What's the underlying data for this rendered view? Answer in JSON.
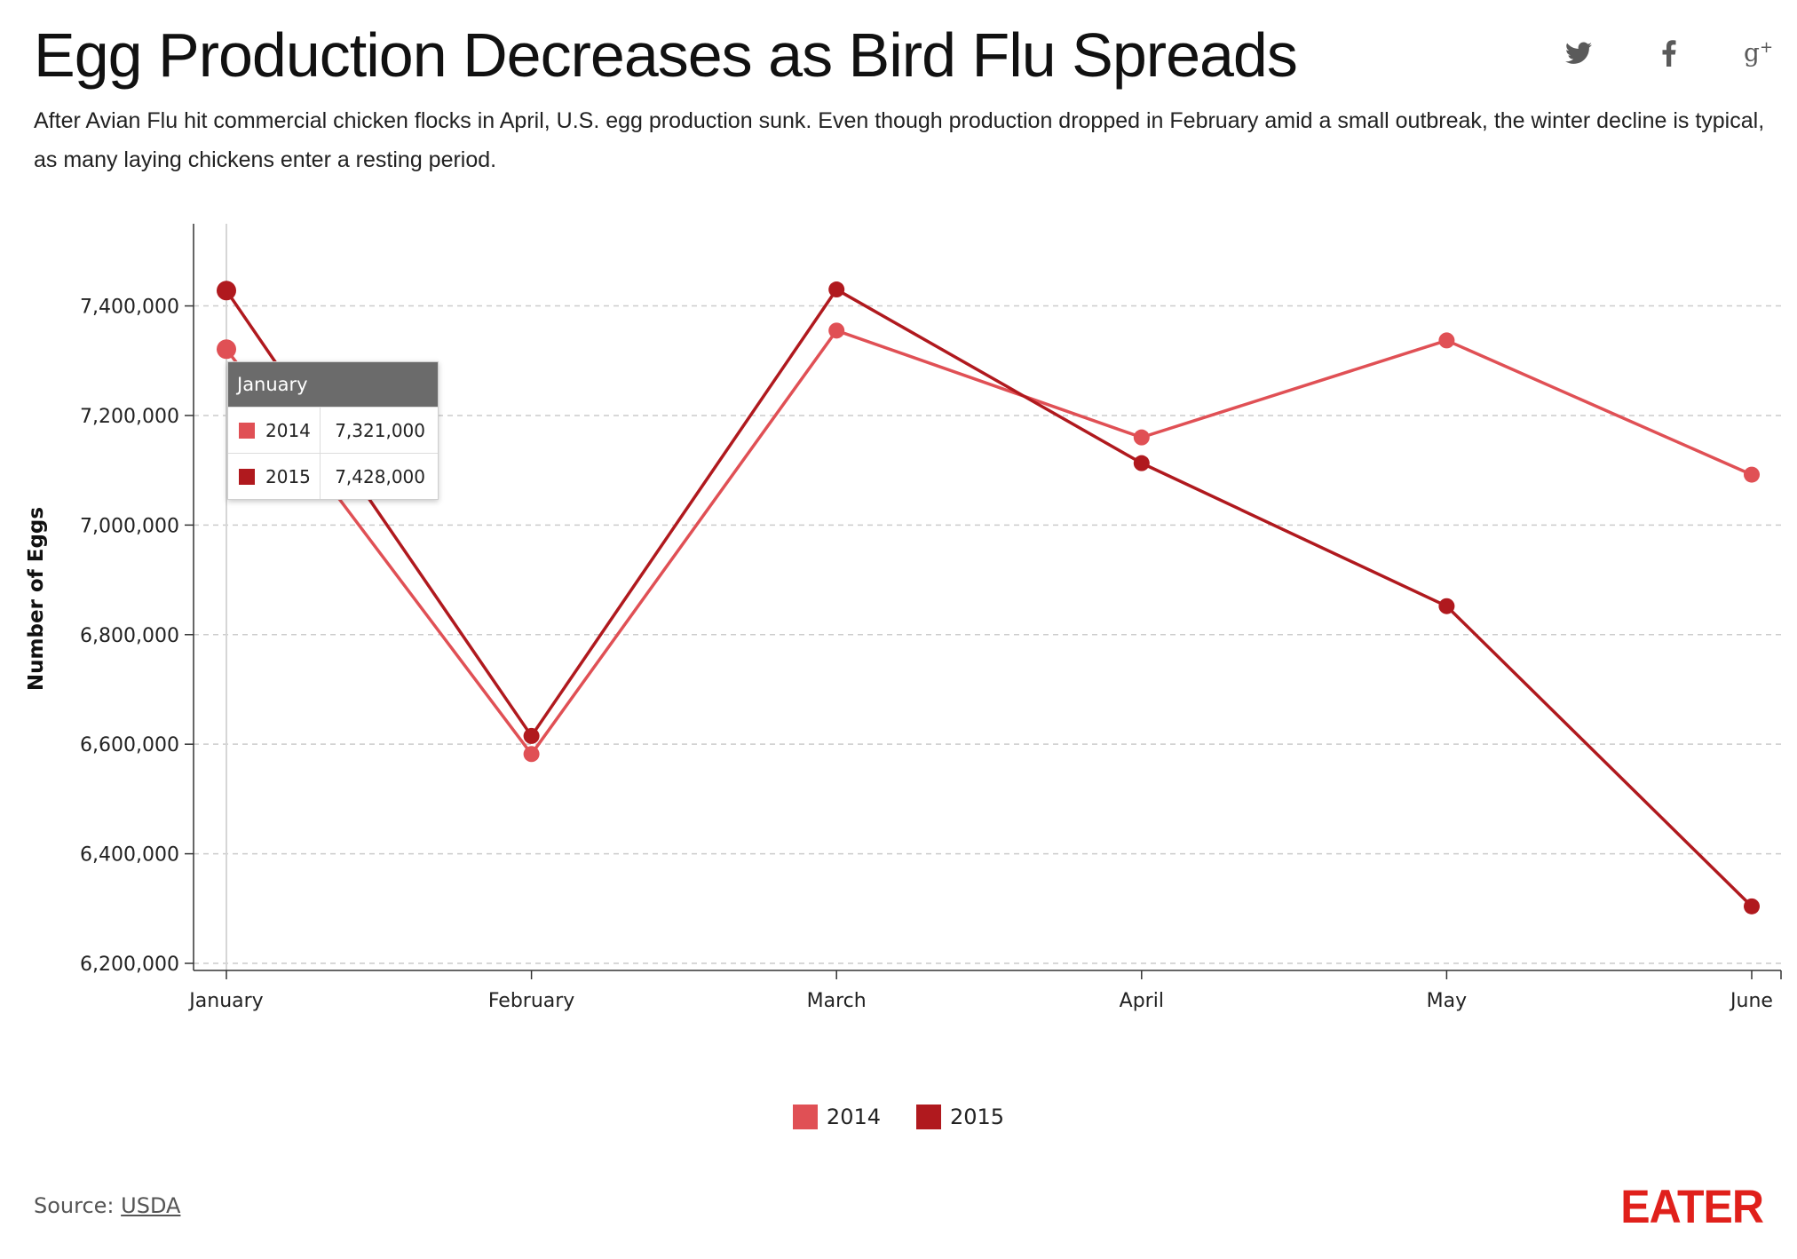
{
  "header": {
    "title": "Egg Production Decreases as Bird Flu Spreads",
    "subtitle": "After Avian Flu hit commercial chicken flocks in April, U.S. egg production sunk. Even though production dropped in February amid a small outbreak, the winter decline is typical, as many laying chickens enter a resting period."
  },
  "social": [
    "twitter-icon",
    "facebook-icon",
    "google-plus-icon"
  ],
  "chart_data": {
    "type": "line",
    "title": "Egg Production Decreases as Bird Flu Spreads",
    "xlabel": "",
    "ylabel": "Number of Eggs",
    "categories": [
      "January",
      "February",
      "March",
      "April",
      "May",
      "June"
    ],
    "series": [
      {
        "name": "2014",
        "color": "#e05055",
        "values": [
          7321000,
          6582000,
          7355000,
          7160000,
          7337000,
          7092000
        ]
      },
      {
        "name": "2015",
        "color": "#b0191e",
        "values": [
          7428000,
          6615000,
          7430000,
          7113000,
          6852000,
          6304000
        ]
      }
    ],
    "ylim": [
      6200000,
      7550000
    ],
    "yticks": [
      6200000,
      6400000,
      6600000,
      6800000,
      7000000,
      7200000,
      7400000
    ],
    "ytick_labels": [
      "6,200,000",
      "6,400,000",
      "6,600,000",
      "6,800,000",
      "7,000,000",
      "7,200,000",
      "7,400,000"
    ],
    "grid": true,
    "legend": "bottom-center"
  },
  "tooltip": {
    "header": "January",
    "rows": [
      {
        "name": "2014",
        "value": "7,321,000",
        "color": "#e05055"
      },
      {
        "name": "2015",
        "value": "7,428,000",
        "color": "#b0191e"
      }
    ]
  },
  "legend": [
    {
      "name": "2014",
      "color": "#e05055"
    },
    {
      "name": "2015",
      "color": "#b0191e"
    }
  ],
  "footer": {
    "source_prefix": "Source: ",
    "source_link": "USDA",
    "logo": "EATER"
  },
  "colors": {
    "accent": "#e0201b",
    "grid": "#cccccc",
    "axis": "#333333"
  }
}
